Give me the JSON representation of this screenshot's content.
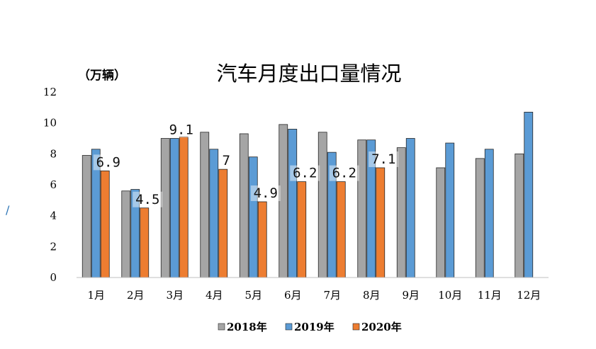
{
  "chart_data": {
    "type": "bar",
    "title": "汽车月度出口量情况",
    "ylabel": "（万辆）",
    "xlabel": "",
    "ylim": [
      0,
      12
    ],
    "yticks": [
      "0",
      "2",
      "4",
      "6",
      "8",
      "10",
      "12"
    ],
    "categories": [
      "1月",
      "2月",
      "3月",
      "4月",
      "5月",
      "6月",
      "7月",
      "8月",
      "9月",
      "10月",
      "11月",
      "12月"
    ],
    "series": [
      {
        "name": "2018年",
        "color": "#a5a5a5",
        "values": [
          7.9,
          5.6,
          9.0,
          9.4,
          9.3,
          9.9,
          9.4,
          8.9,
          8.4,
          7.1,
          7.7,
          8.0
        ]
      },
      {
        "name": "2019年",
        "color": "#5b9bd5",
        "values": [
          8.3,
          5.7,
          9.0,
          8.3,
          7.8,
          9.6,
          8.1,
          8.9,
          9.0,
          8.7,
          8.3,
          10.7
        ]
      },
      {
        "name": "2020年",
        "color": "#ed7d31",
        "values": [
          6.9,
          4.5,
          9.1,
          7.0,
          4.9,
          6.2,
          6.2,
          7.1,
          null,
          null,
          null,
          null
        ]
      }
    ],
    "data_labels": [
      "6.9",
      "4.5",
      "9.1",
      "7",
      "4.9",
      "6.2",
      "6.2",
      "7.1"
    ],
    "legend": "bottom-center"
  }
}
